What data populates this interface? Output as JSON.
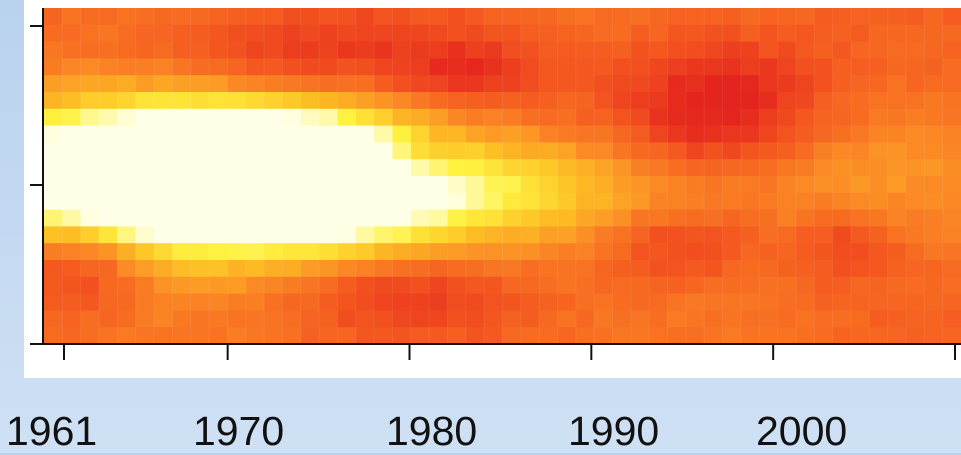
{
  "chart_data": {
    "type": "heatmap",
    "title": "",
    "xlabel": "",
    "ylabel": "",
    "x_tick_labels": [
      "1961",
      "1970",
      "1980",
      "1990",
      "2000"
    ],
    "x_range": [
      1961,
      2010
    ],
    "rows": 20,
    "columns": 50,
    "colorscale": [
      "#e4241e",
      "#f4571f",
      "#fb8a25",
      "#fdbf24",
      "#fff13f",
      "#ffffe8"
    ],
    "value_range": [
      0,
      1
    ],
    "hotspots": [
      {
        "x": 1972,
        "row": 10,
        "value": 1.0,
        "sx": 4.5,
        "sy": 2.2
      },
      {
        "x": 1968,
        "row": 10,
        "value": 0.8,
        "sx": 7,
        "sy": 3.5
      },
      {
        "x": 1964,
        "row": 10,
        "value": 0.5,
        "sx": 6,
        "sy": 2.5
      },
      {
        "x": 1984,
        "row": 11,
        "value": 0.45,
        "sx": 7,
        "sy": 2.2
      },
      {
        "x": 1977,
        "row": 10,
        "value": 0.4,
        "sx": 4,
        "sy": 3
      },
      {
        "x": 2002,
        "row": 10,
        "value": 0.15,
        "sx": 8,
        "sy": 3
      }
    ],
    "coldspots": [
      {
        "x": 1974,
        "row": 3,
        "value": -0.25,
        "sx": 6,
        "sy": 2
      },
      {
        "x": 1984,
        "row": 4,
        "value": -0.2,
        "sx": 3,
        "sy": 1.5
      },
      {
        "x": 1997,
        "row": 6,
        "value": -0.35,
        "sx": 4,
        "sy": 3
      },
      {
        "x": 1963,
        "row": 15,
        "value": -0.3,
        "sx": 2.5,
        "sy": 2
      },
      {
        "x": 1981,
        "row": 9,
        "value": -0.25,
        "sx": 1.5,
        "sy": 1
      },
      {
        "x": 1980,
        "row": 17,
        "value": -0.2,
        "sx": 4,
        "sy": 1.5
      },
      {
        "x": 1995,
        "row": 14,
        "value": -0.2,
        "sx": 3,
        "sy": 1.5
      },
      {
        "x": 2004,
        "row": 14,
        "value": -0.2,
        "sx": 2,
        "sy": 1.5
      }
    ]
  }
}
